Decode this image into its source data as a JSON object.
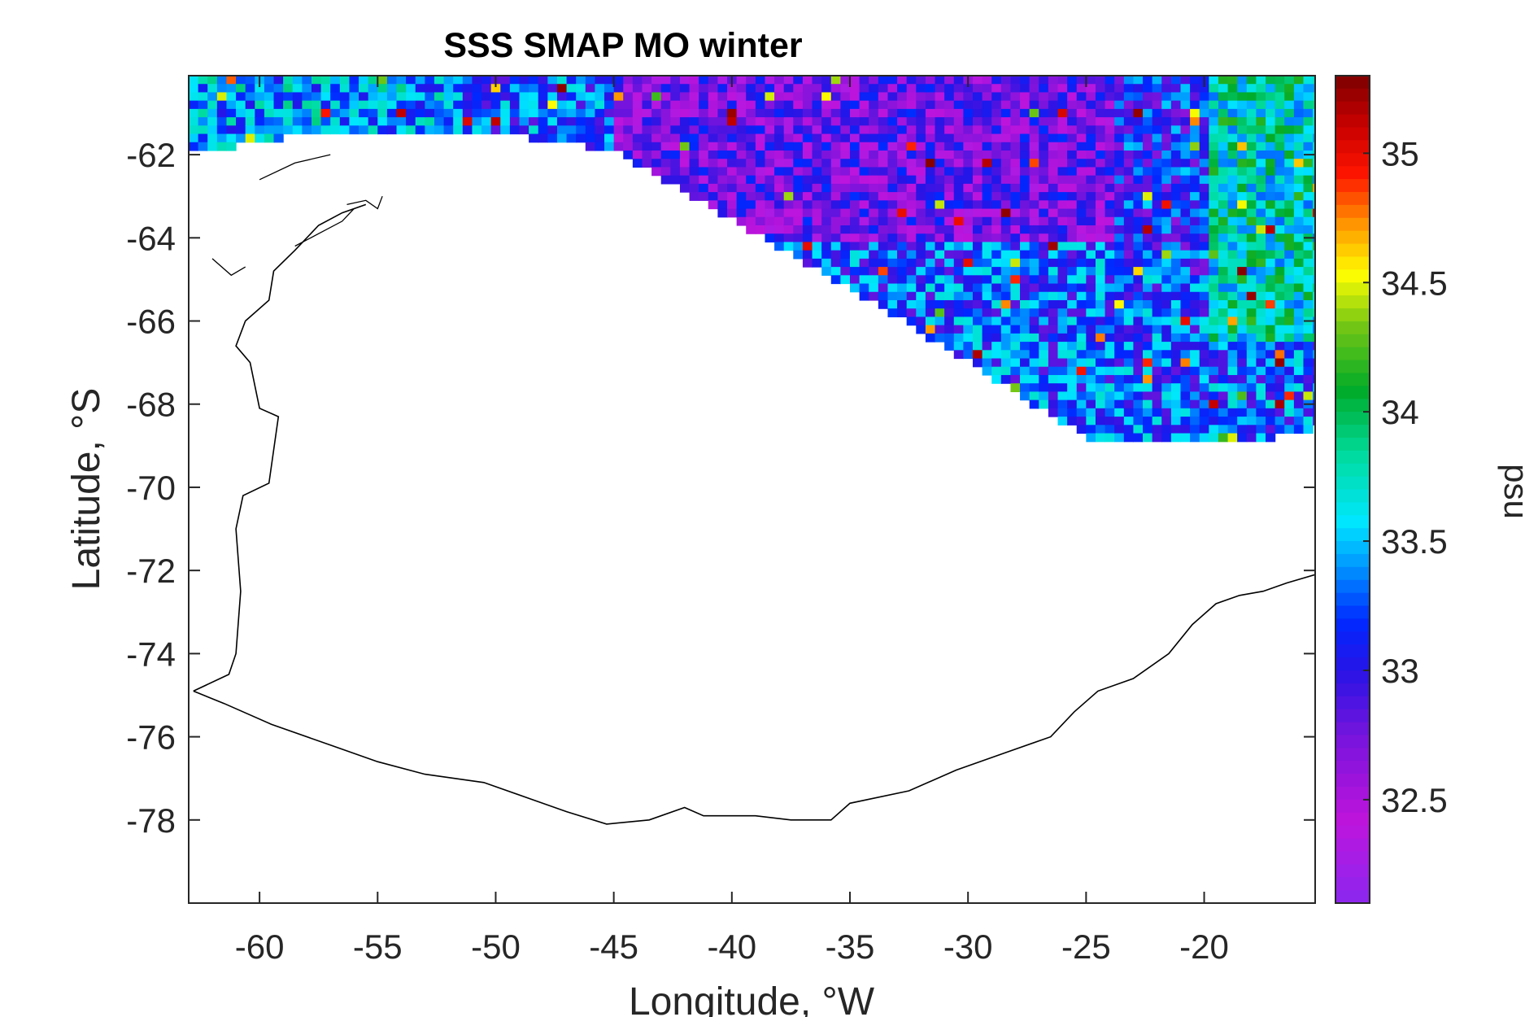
{
  "chart_data": {
    "type": "heatmap",
    "title": "SSS SMAP MO winter",
    "xlabel": "Longitude, °W",
    "ylabel": "Latitude, °S",
    "colorbar_label": "psu",
    "xlim": [
      -63,
      -15.3
    ],
    "ylim": [
      -80.0,
      -60.1
    ],
    "x_ticks": [
      -60,
      -55,
      -50,
      -45,
      -40,
      -35,
      -30,
      -25,
      -20
    ],
    "y_ticks": [
      -62,
      -64,
      -66,
      -68,
      -70,
      -72,
      -74,
      -76,
      -78
    ],
    "x_tick_labels": [
      "-60",
      "-55",
      "-50",
      "-45",
      "-40",
      "-35",
      "-30",
      "-25",
      "-20"
    ],
    "y_tick_labels": [
      "-62",
      "-64",
      "-66",
      "-68",
      "-70",
      "-72",
      "-74",
      "-76",
      "-78"
    ],
    "clim": [
      32.1,
      35.3
    ],
    "colorbar_ticks": [
      32.5,
      33,
      33.5,
      34,
      34.5,
      35
    ],
    "colorbar_tick_labels": [
      "32.5",
      "33",
      "33.5",
      "34",
      "34.5",
      "35"
    ],
    "colormap": "jet-like (purple → blue → cyan → green → yellow → red → dark red)",
    "grid": false,
    "data_extent": {
      "description": "SSS grid cells present north of the sea-ice edge; white (no data) south of it",
      "ice_edge": [
        [
          -63,
          -62.0
        ],
        [
          -57,
          -61.4
        ],
        [
          -50,
          -61.5
        ],
        [
          -45,
          -61.9
        ],
        [
          -40,
          -63.6
        ],
        [
          -35,
          -65.2
        ],
        [
          -30,
          -67.0
        ],
        [
          -25,
          -68.8
        ],
        [
          -20,
          -69.0
        ],
        [
          -18,
          -68.9
        ],
        [
          -15.3,
          -68.6
        ]
      ],
      "regional_means_psu": [
        {
          "region": "northwest (-63 to -52 W, north of -62 S)",
          "value": 33.4
        },
        {
          "region": "central north (-45 to -25 W, -60 to -64 S)",
          "value": 32.7
        },
        {
          "region": "interior (-35 to -20 W, -64 to -68 S)",
          "value": 33.3
        },
        {
          "region": "east (-20 to -15.3 W, -61 to -66 S)",
          "value": 33.8
        }
      ]
    },
    "coastline": {
      "description": "Antarctic Peninsula and Weddell Sea coastline",
      "points": [
        [
          -62.8,
          -74.9
        ],
        [
          -61.5,
          -75.2
        ],
        [
          -59.5,
          -75.7
        ],
        [
          -57.0,
          -76.2
        ],
        [
          -55.0,
          -76.6
        ],
        [
          -53.0,
          -76.9
        ],
        [
          -50.5,
          -77.1
        ],
        [
          -48.5,
          -77.5
        ],
        [
          -47.0,
          -77.8
        ],
        [
          -45.3,
          -78.1
        ],
        [
          -43.5,
          -78.0
        ],
        [
          -42.0,
          -77.7
        ],
        [
          -41.2,
          -77.9
        ],
        [
          -39.0,
          -77.9
        ],
        [
          -37.5,
          -78.0
        ],
        [
          -35.8,
          -78.0
        ],
        [
          -35.0,
          -77.6
        ],
        [
          -32.5,
          -77.3
        ],
        [
          -30.5,
          -76.8
        ],
        [
          -28.5,
          -76.4
        ],
        [
          -26.5,
          -76.0
        ],
        [
          -25.5,
          -75.4
        ],
        [
          -24.5,
          -74.9
        ],
        [
          -23.0,
          -74.6
        ],
        [
          -21.5,
          -74.0
        ],
        [
          -20.5,
          -73.3
        ],
        [
          -19.5,
          -72.8
        ],
        [
          -18.5,
          -72.6
        ],
        [
          -17.5,
          -72.5
        ],
        [
          -16.5,
          -72.3
        ],
        [
          -15.3,
          -72.1
        ]
      ],
      "peninsula_west": [
        [
          -62.8,
          -74.9
        ],
        [
          -61.3,
          -74.5
        ],
        [
          -61.0,
          -74.0
        ],
        [
          -60.8,
          -72.5
        ],
        [
          -61.0,
          -71.0
        ],
        [
          -60.7,
          -70.2
        ],
        [
          -59.6,
          -69.9
        ],
        [
          -59.2,
          -68.3
        ],
        [
          -60.0,
          -68.1
        ],
        [
          -60.4,
          -67.0
        ],
        [
          -61.0,
          -66.6
        ],
        [
          -60.6,
          -66.0
        ],
        [
          -59.6,
          -65.5
        ],
        [
          -59.4,
          -64.8
        ],
        [
          -58.5,
          -64.3
        ],
        [
          -57.5,
          -63.7
        ],
        [
          -56.5,
          -63.4
        ],
        [
          -55.5,
          -63.2
        ]
      ],
      "islands": [
        [
          [
            -60.0,
            -62.6
          ],
          [
            -58.5,
            -62.2
          ],
          [
            -57.0,
            -62.0
          ]
        ],
        [
          [
            -58.5,
            -64.2
          ],
          [
            -57.5,
            -63.9
          ],
          [
            -56.5,
            -63.6
          ],
          [
            -56.0,
            -63.3
          ]
        ],
        [
          [
            -56.3,
            -63.2
          ],
          [
            -55.5,
            -63.1
          ],
          [
            -55.0,
            -63.3
          ],
          [
            -54.8,
            -63.0
          ]
        ],
        [
          [
            -62.0,
            -64.5
          ],
          [
            -61.2,
            -64.9
          ],
          [
            -60.6,
            -64.7
          ]
        ]
      ]
    }
  }
}
